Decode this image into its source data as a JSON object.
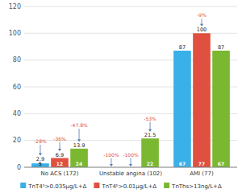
{
  "chart_data": {
    "type": "bar",
    "categories": [
      "No ACS (172)",
      "Unstable angina (102)",
      "AMI (77)"
    ],
    "series": [
      {
        "name": "TnT4ᵇ>0.035μg/L+Δ",
        "color": "#3ab0e8",
        "values": [
          2.9,
          0,
          87
        ],
        "value_labels": [
          "2.9",
          null,
          "87"
        ],
        "counts": [
          5,
          null,
          67
        ],
        "annotations": [
          {
            "text": "-28%",
            "y": 18
          },
          {
            "text": "-100%",
            "y": 8
          },
          null
        ]
      },
      {
        "name": "TnT4ᵇ>0.01μg/L+Δ",
        "color": "#e05040",
        "values": [
          6.9,
          0,
          100
        ],
        "value_labels": [
          "6.9",
          null,
          "100"
        ],
        "counts": [
          12,
          null,
          77
        ],
        "annotations": [
          {
            "text": "-36%",
            "y": 20
          },
          {
            "text": "-100%",
            "y": 8
          },
          {
            "text": "-9%",
            "y": 112
          }
        ]
      },
      {
        "name": "TnThs>13ng/L+Δ",
        "color": "#7ab832",
        "values": [
          13.9,
          21.5,
          87
        ],
        "value_labels": [
          "13.9",
          "21.5",
          "87"
        ],
        "counts": [
          24,
          22,
          67
        ],
        "annotations": [
          {
            "text": "-47.8%",
            "y": 30
          },
          {
            "text": "-53%",
            "y": 35
          },
          null
        ]
      }
    ],
    "ylim": [
      0,
      120
    ],
    "yticks": [
      0,
      20,
      40,
      60,
      80,
      100,
      120
    ],
    "grid": true,
    "legend": "bottom",
    "data_labels": true
  }
}
